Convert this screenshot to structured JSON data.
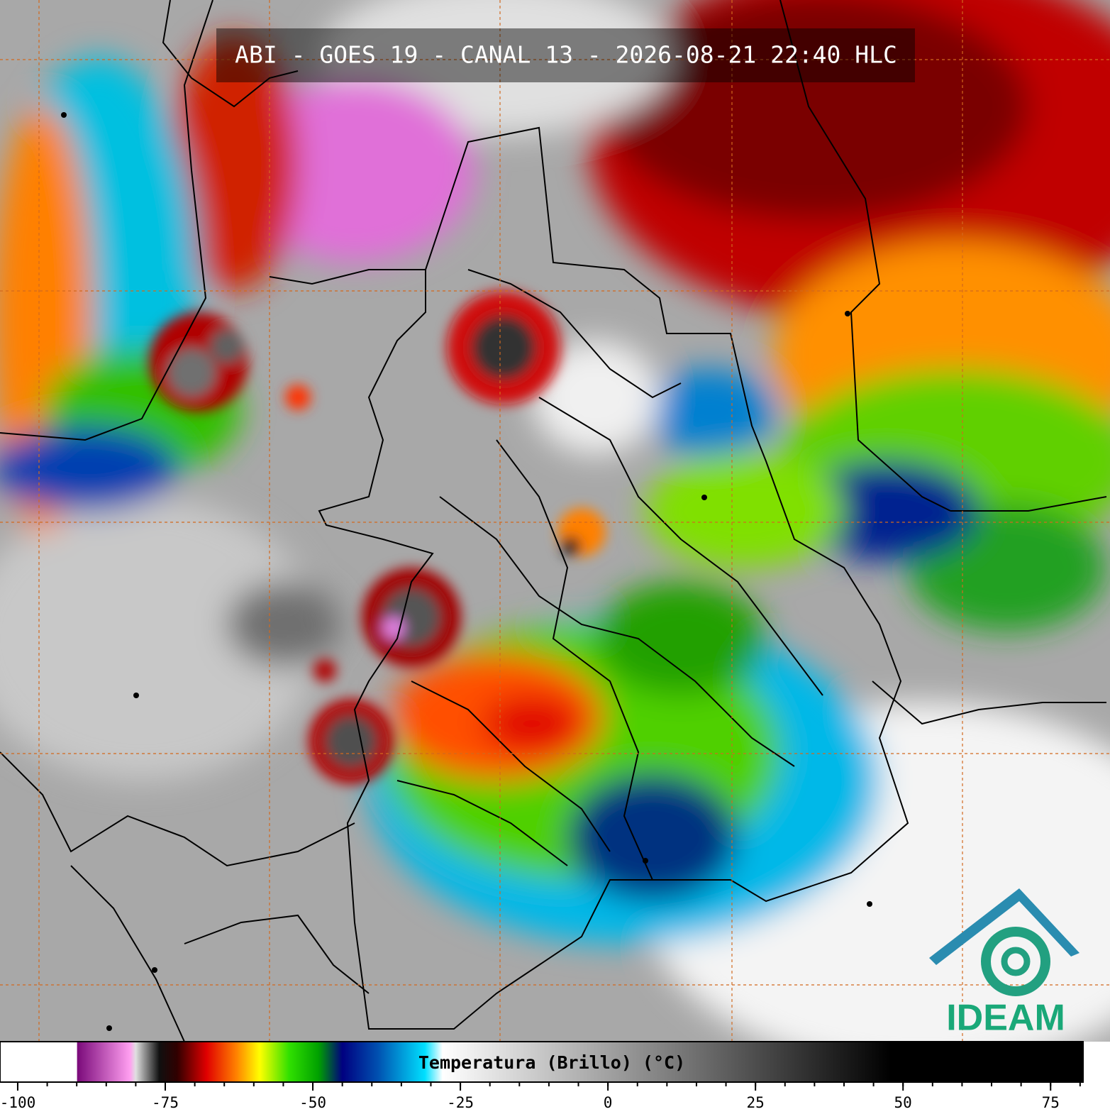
{
  "title": "ABI - GOES 19 - CANAL 13 - 2026-08-21 22:40 HLC",
  "logo": "IDEAM",
  "colorbar": {
    "label": "Temperatura (Brillo) (°C)",
    "xlim": [
      -103,
      80.5
    ],
    "xticks": [
      -100,
      -75,
      -50,
      -25,
      0,
      25,
      50,
      75
    ],
    "xminorticks": [
      -100,
      -95,
      -90,
      -85,
      -80,
      -75,
      -70,
      -65,
      -60,
      -55,
      -50,
      -45,
      -40,
      -35,
      -30,
      -25,
      -20,
      -15,
      -10,
      -5,
      0,
      5,
      10,
      15,
      20,
      25,
      30,
      35,
      40,
      45,
      50,
      55,
      60,
      65,
      70,
      75,
      80
    ],
    "colormap": [
      {
        "value": -103,
        "color": "#ffffff"
      },
      {
        "value": -90,
        "color": "#ffffff"
      },
      {
        "value": -89.9,
        "color": "#7a0a7a"
      },
      {
        "value": -81,
        "color": "#ff9ef0"
      },
      {
        "value": -80,
        "color": "#e0e0e0"
      },
      {
        "value": -76,
        "color": "#101010"
      },
      {
        "value": -73,
        "color": "#300000"
      },
      {
        "value": -68,
        "color": "#e00000"
      },
      {
        "value": -63,
        "color": "#ff8000"
      },
      {
        "value": -59,
        "color": "#ffff00"
      },
      {
        "value": -54,
        "color": "#30e000"
      },
      {
        "value": -49,
        "color": "#00a000"
      },
      {
        "value": -45,
        "color": "#000080"
      },
      {
        "value": -39,
        "color": "#0050b0"
      },
      {
        "value": -31,
        "color": "#00e0ff"
      },
      {
        "value": -28,
        "color": "#ffffff"
      },
      {
        "value": 48,
        "color": "#000000"
      },
      {
        "value": 80.5,
        "color": "#000000"
      }
    ]
  }
}
